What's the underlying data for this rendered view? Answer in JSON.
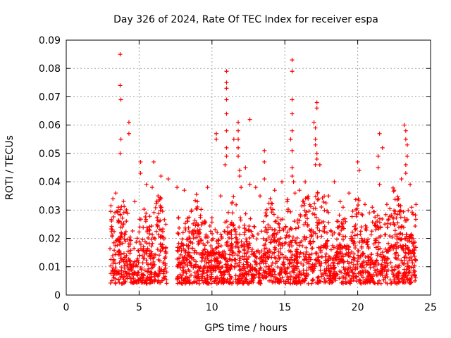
{
  "chart_data": {
    "type": "scatter",
    "title": "Day 326 of 2024, Rate Of TEC Index for receiver espa",
    "xlabel": "GPS time / hours",
    "ylabel": "ROTI / TECUs",
    "xlim": [
      0,
      25
    ],
    "ylim": [
      0,
      0.09
    ],
    "x_ticks": [
      "0",
      "5",
      "10",
      "15",
      "20",
      "25"
    ],
    "y_ticks": [
      "0",
      "0.01",
      "0.02",
      "0.03",
      "0.04",
      "0.05",
      "0.06",
      "0.07",
      "0.08",
      "0.09"
    ],
    "grid": true,
    "marker": "+",
    "color": "#ff0000",
    "gap": [
      6.9,
      7.6
    ],
    "data_span": [
      3.0,
      24.0
    ],
    "outliers": [
      [
        3.7,
        0.085
      ],
      [
        3.7,
        0.074
      ],
      [
        3.75,
        0.069
      ],
      [
        4.3,
        0.061
      ],
      [
        3.75,
        0.055
      ],
      [
        3.7,
        0.05
      ],
      [
        4.3,
        0.057
      ],
      [
        5.1,
        0.047
      ],
      [
        6.0,
        0.047
      ],
      [
        5.1,
        0.043
      ],
      [
        6.5,
        0.042
      ],
      [
        7.0,
        0.041
      ],
      [
        5.5,
        0.039
      ],
      [
        7.6,
        0.038
      ],
      [
        10.3,
        0.057
      ],
      [
        10.3,
        0.055
      ],
      [
        11.0,
        0.079
      ],
      [
        11.0,
        0.075
      ],
      [
        11.0,
        0.073
      ],
      [
        11.0,
        0.069
      ],
      [
        11.0,
        0.064
      ],
      [
        11.0,
        0.058
      ],
      [
        11.0,
        0.052
      ],
      [
        11.0,
        0.049
      ],
      [
        10.9,
        0.046
      ],
      [
        11.5,
        0.055
      ],
      [
        11.8,
        0.061
      ],
      [
        11.8,
        0.058
      ],
      [
        11.8,
        0.055
      ],
      [
        11.8,
        0.052
      ],
      [
        11.8,
        0.049
      ],
      [
        11.9,
        0.044
      ],
      [
        11.9,
        0.042
      ],
      [
        12.6,
        0.062
      ],
      [
        12.3,
        0.045
      ],
      [
        12.6,
        0.039
      ],
      [
        13.6,
        0.051
      ],
      [
        13.6,
        0.047
      ],
      [
        13.6,
        0.041
      ],
      [
        13.0,
        0.038
      ],
      [
        14.8,
        0.04
      ],
      [
        14.3,
        0.037
      ],
      [
        15.5,
        0.083
      ],
      [
        15.5,
        0.079
      ],
      [
        15.5,
        0.069
      ],
      [
        15.5,
        0.064
      ],
      [
        15.5,
        0.058
      ],
      [
        15.4,
        0.055
      ],
      [
        15.5,
        0.051
      ],
      [
        15.5,
        0.045
      ],
      [
        15.5,
        0.042
      ],
      [
        15.6,
        0.04
      ],
      [
        15.7,
        0.036
      ],
      [
        17.2,
        0.068
      ],
      [
        17.2,
        0.066
      ],
      [
        17.0,
        0.061
      ],
      [
        17.1,
        0.059
      ],
      [
        17.1,
        0.055
      ],
      [
        17.1,
        0.053
      ],
      [
        17.2,
        0.05
      ],
      [
        17.2,
        0.048
      ],
      [
        17.1,
        0.046
      ],
      [
        17.4,
        0.046
      ],
      [
        18.4,
        0.04
      ],
      [
        20.0,
        0.047
      ],
      [
        20.1,
        0.044
      ],
      [
        21.5,
        0.057
      ],
      [
        21.7,
        0.052
      ],
      [
        21.4,
        0.049
      ],
      [
        21.4,
        0.045
      ],
      [
        21.5,
        0.039
      ],
      [
        23.2,
        0.06
      ],
      [
        23.3,
        0.058
      ],
      [
        23.3,
        0.055
      ],
      [
        23.4,
        0.053
      ],
      [
        23.4,
        0.049
      ],
      [
        23.3,
        0.046
      ],
      [
        23.3,
        0.043
      ],
      [
        23.0,
        0.041
      ],
      [
        23.6,
        0.039
      ],
      [
        22.5,
        0.037
      ],
      [
        8.1,
        0.037
      ],
      [
        9.0,
        0.033
      ],
      [
        9.7,
        0.038
      ],
      [
        16.4,
        0.04
      ],
      [
        19.4,
        0.036
      ],
      [
        20.5,
        0.032
      ],
      [
        24.0,
        0.032
      ],
      [
        3.2,
        0.034
      ],
      [
        3.4,
        0.036
      ],
      [
        4.7,
        0.033
      ],
      [
        5.9,
        0.038
      ],
      [
        6.3,
        0.035
      ],
      [
        8.6,
        0.03
      ],
      [
        10.6,
        0.035
      ],
      [
        12.0,
        0.038
      ],
      [
        13.3,
        0.035
      ],
      [
        14.0,
        0.034
      ],
      [
        16.0,
        0.037
      ],
      [
        16.6,
        0.034
      ],
      [
        18.0,
        0.035
      ],
      [
        18.8,
        0.033
      ],
      [
        19.0,
        0.031
      ],
      [
        20.8,
        0.029
      ],
      [
        21.0,
        0.031
      ],
      [
        22.0,
        0.032
      ],
      [
        22.8,
        0.034
      ],
      [
        23.7,
        0.031
      ]
    ]
  }
}
